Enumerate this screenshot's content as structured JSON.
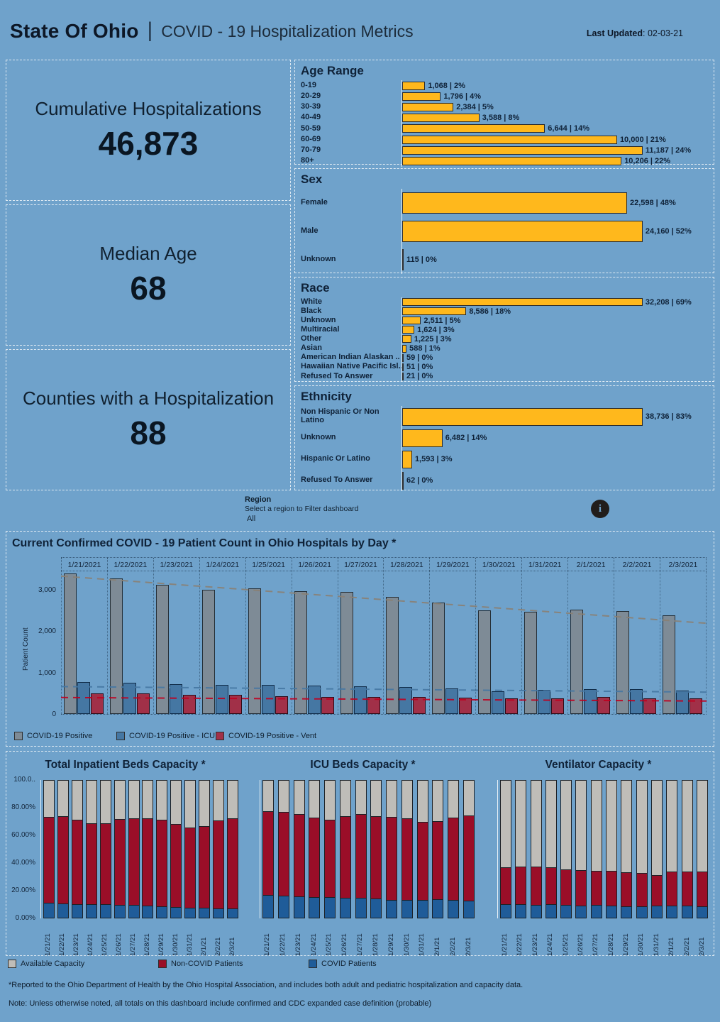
{
  "header": {
    "brand": "State Of Ohio",
    "separator": "|",
    "title": "COVID - 19 Hospitalization Metrics",
    "last_updated_label": "Last Updated",
    "last_updated_value": ": 02-03-21"
  },
  "kpis": [
    {
      "label": "Cumulative Hospitalizations",
      "value": "46,873"
    },
    {
      "label": "Median Age",
      "value": "68"
    },
    {
      "label": "Counties with a Hospitalization",
      "value": "88"
    }
  ],
  "region": {
    "label": "Region",
    "hint": "Select a region to Filter dashboard",
    "value": "All"
  },
  "info_icon_glyph": "i",
  "theme": {
    "background": "#6FA2CB",
    "bar_orange": "#FFB81C",
    "text_dark": "#0F2238"
  },
  "chart_data": [
    {
      "id": "age_range",
      "type": "bar",
      "orientation": "horizontal",
      "title": "Age Range",
      "categories": [
        "0-19",
        "20-29",
        "30-39",
        "40-49",
        "50-59",
        "60-69",
        "70-79",
        "80+"
      ],
      "values": [
        1068,
        1796,
        2384,
        3588,
        6644,
        10000,
        11187,
        10206
      ],
      "value_labels": [
        "1,068 | 2%",
        "1,796 | 4%",
        "2,384 | 5%",
        "3,588 | 8%",
        "6,644 | 14%",
        "10,000 | 21%",
        "11,187 | 24%",
        "10,206 | 22%"
      ],
      "bar_color": "#FFB81C"
    },
    {
      "id": "sex",
      "type": "bar",
      "orientation": "horizontal",
      "title": "Sex",
      "categories": [
        "Female",
        "Male",
        "Unknown"
      ],
      "values": [
        22598,
        24160,
        115
      ],
      "value_labels": [
        "22,598 | 48%",
        "24,160 | 52%",
        "115 | 0%"
      ],
      "bar_color": "#FFB81C"
    },
    {
      "id": "race",
      "type": "bar",
      "orientation": "horizontal",
      "title": "Race",
      "categories": [
        "White",
        "Black",
        "Unknown",
        "Multiracial",
        "Other",
        "Asian",
        "American Indian Alaskan ..",
        "Hawaiian Native Pacific Isl..",
        "Refused To Answer"
      ],
      "values": [
        32208,
        8586,
        2511,
        1624,
        1225,
        588,
        59,
        51,
        21
      ],
      "value_labels": [
        "32,208 | 69%",
        "8,586 | 18%",
        "2,511 | 5%",
        "1,624 | 3%",
        "1,225 | 3%",
        "588 | 1%",
        "59 | 0%",
        "51 | 0%",
        "21 | 0%"
      ],
      "bar_color": "#FFB81C"
    },
    {
      "id": "ethnicity",
      "type": "bar",
      "orientation": "horizontal",
      "title": "Ethnicity",
      "categories": [
        "Non Hispanic Or Non Latino",
        "Unknown",
        "Hispanic Or Latino",
        "Refused To Answer"
      ],
      "values": [
        38736,
        6482,
        1593,
        62
      ],
      "value_labels": [
        "38,736 | 83%",
        "6,482 | 14%",
        "1,593 | 3%",
        "62 | 0%"
      ],
      "bar_color": "#FFB81C"
    },
    {
      "id": "daily_patient_count",
      "type": "bar",
      "title": "Current Confirmed COVID - 19 Patient Count in Ohio Hospitals by Day *",
      "ylabel": "Patient Count",
      "ylim": [
        0,
        3465
      ],
      "ytick_values": [
        3000,
        2000,
        1000,
        0
      ],
      "ytick_labels": [
        "3,000",
        "2,000",
        "1,000",
        "0"
      ],
      "categories": [
        "1/21/2021",
        "1/22/2021",
        "1/23/2021",
        "1/24/2021",
        "1/25/2021",
        "1/26/2021",
        "1/27/2021",
        "1/28/2021",
        "1/29/2021",
        "1/30/2021",
        "1/31/2021",
        "2/1/2021",
        "2/2/2021",
        "2/3/2021"
      ],
      "series": [
        {
          "name": "COVID-19 Positive",
          "color": "#7E8B96",
          "values": [
            3400,
            3280,
            3120,
            3000,
            3030,
            2960,
            2950,
            2830,
            2700,
            2510,
            2470,
            2530,
            2480,
            2380
          ]
        },
        {
          "name": "COVID-19 Positive - ICU",
          "color": "#4577A3",
          "values": [
            780,
            750,
            720,
            700,
            700,
            680,
            670,
            650,
            610,
            550,
            590,
            600,
            595,
            570
          ]
        },
        {
          "name": "COVID-19 Positive - Vent",
          "color": "#A13048",
          "values": [
            500,
            500,
            470,
            460,
            430,
            420,
            420,
            420,
            400,
            380,
            380,
            410,
            370,
            370
          ]
        }
      ],
      "trend_lines": [
        {
          "series": "COVID-19 Positive",
          "color": "#8A8074",
          "from": 3350,
          "to": 2210
        },
        {
          "series": "COVID-19 Positive - ICU",
          "color": "#4577A3",
          "from": 680,
          "to": 545
        },
        {
          "series": "COVID-19 Positive - Vent",
          "color": "#C00020",
          "from": 415,
          "to": 330
        }
      ]
    },
    {
      "id": "inpatient_beds_capacity",
      "type": "stacked-bar",
      "title": "Total Inpatient Beds Capacity *",
      "ytick_labels": [
        "100.0..",
        "80.00%",
        "60.00%",
        "40.00%",
        "20.00%",
        "0.00%"
      ],
      "ytick_values": [
        100,
        80,
        60,
        40,
        20,
        0
      ],
      "categories": [
        "1/21/21",
        "1/22/21",
        "1/23/21",
        "1/24/21",
        "1/25/21",
        "1/26/21",
        "1/27/21",
        "1/28/21",
        "1/29/21",
        "1/30/21",
        "1/31/21",
        "2/1/21",
        "2/2/21",
        "2/3/21"
      ],
      "series": [
        {
          "name": "COVID Patients",
          "color": "#1F5C99",
          "values": [
            11.5,
            11,
            10.5,
            10,
            10,
            9.5,
            9.5,
            9,
            8.5,
            8,
            7.5,
            7.5,
            7,
            7
          ]
        },
        {
          "name": "Non-COVID Patients",
          "color": "#9A0E28",
          "values": [
            62,
            63,
            61,
            58.5,
            58.5,
            62.5,
            63,
            63.5,
            63,
            60,
            58,
            59,
            64,
            65.5
          ]
        },
        {
          "name": "Available Capacity",
          "color": "#BFBDB8",
          "values": [
            26.5,
            26,
            28.5,
            31.5,
            31.5,
            28,
            27.5,
            27.5,
            28.5,
            32,
            34.5,
            33.5,
            29,
            27.5
          ]
        }
      ]
    },
    {
      "id": "icu_beds_capacity",
      "type": "stacked-bar",
      "title": "ICU Beds Capacity *",
      "categories": [
        "1/21/21",
        "1/22/21",
        "1/23/21",
        "1/24/21",
        "1/25/21",
        "1/26/21",
        "1/27/21",
        "1/28/21",
        "1/29/21",
        "1/30/21",
        "1/31/21",
        "2/1/21",
        "2/2/21",
        "2/3/21"
      ],
      "series": [
        {
          "name": "COVID Patients",
          "color": "#1F5C99",
          "values": [
            17,
            16.5,
            16,
            15.5,
            15.5,
            15,
            15,
            14.5,
            13.5,
            13.5,
            13.5,
            14,
            13.5,
            13
          ]
        },
        {
          "name": "Non-COVID Patients",
          "color": "#9A0E28",
          "values": [
            60.5,
            60.5,
            59.5,
            57.5,
            56,
            59,
            60.5,
            59.5,
            60,
            59,
            56.5,
            56.5,
            59.5,
            61.5
          ]
        },
        {
          "name": "Available Capacity",
          "color": "#BFBDB8",
          "values": [
            22.5,
            23,
            24.5,
            27,
            28.5,
            26,
            24.5,
            26,
            26.5,
            27.5,
            30,
            29.5,
            27,
            25.5
          ]
        }
      ]
    },
    {
      "id": "ventilator_capacity",
      "type": "stacked-bar",
      "title": "Ventilator Capacity *",
      "categories": [
        "1/21/21",
        "1/22/21",
        "1/23/21",
        "1/24/21",
        "1/25/21",
        "1/26/21",
        "1/27/21",
        "1/28/21",
        "1/29/21",
        "1/30/21",
        "1/31/21",
        "2/1/21",
        "2/2/21",
        "2/3/21"
      ],
      "series": [
        {
          "name": "COVID Patients",
          "color": "#1F5C99",
          "values": [
            10.5,
            10.5,
            10,
            10,
            9.5,
            9,
            9.5,
            9,
            8.5,
            8.5,
            9,
            9,
            9,
            8.5
          ]
        },
        {
          "name": "Non-COVID Patients",
          "color": "#9A0E28",
          "values": [
            26.5,
            27,
            27.5,
            27,
            26,
            26,
            25,
            25.5,
            25,
            24.5,
            22.5,
            25,
            25,
            25.5
          ]
        },
        {
          "name": "Available Capacity",
          "color": "#BFBDB8",
          "values": [
            63,
            62.5,
            62.5,
            63,
            64.5,
            65,
            65.5,
            65.5,
            66.5,
            67,
            68.5,
            66,
            66,
            66
          ]
        }
      ]
    }
  ],
  "legends": {
    "daily": [
      {
        "label": "COVID-19 Positive",
        "color": "#7E8B96"
      },
      {
        "label": "COVID-19 Positive - ICU",
        "color": "#4577A3"
      },
      {
        "label": "COVID-19 Positive - Vent",
        "color": "#A13048"
      }
    ],
    "capacity": [
      {
        "label": "Available Capacity",
        "color": "#BFBDB8"
      },
      {
        "label": "Non-COVID Patients",
        "color": "#9A0E28"
      },
      {
        "label": "COVID Patients",
        "color": "#1F5C99"
      }
    ]
  },
  "footnotes": [
    "*Reported to the Ohio Department of Health by the Ohio Hospital Association, and includes both adult and pediatric hospitalization and capacity data.",
    "Note: Unless otherwise noted, all totals on this dashboard include confirmed and CDC expanded case definition (probable)"
  ]
}
